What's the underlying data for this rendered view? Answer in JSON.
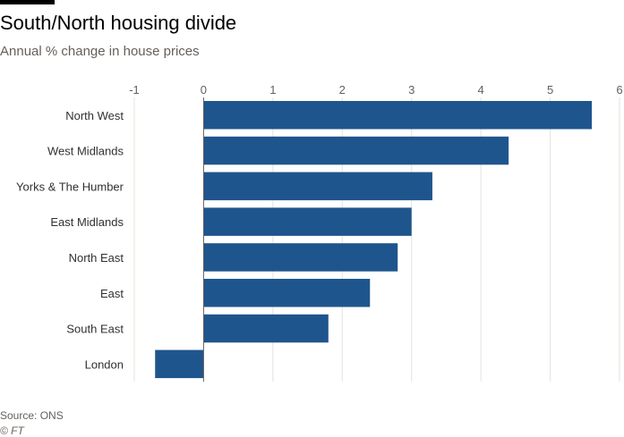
{
  "header": {
    "title": "South/North housing divide",
    "subtitle": "Annual % change in house prices"
  },
  "footer": {
    "source": "Source: ONS",
    "credit": "© FT"
  },
  "colors": {
    "bar": "#1f558d",
    "grid": "#e6e1da",
    "zero_line": "#66605c",
    "accent_bar": "#000000"
  },
  "chart_data": {
    "type": "bar",
    "orientation": "horizontal",
    "title": "South/North housing divide",
    "subtitle": "Annual % change in house prices",
    "categories": [
      "North West",
      "West Midlands",
      "Yorks & The Humber",
      "East Midlands",
      "North East",
      "East",
      "South East",
      "London"
    ],
    "values": [
      5.6,
      4.4,
      3.3,
      3.0,
      2.8,
      2.4,
      1.8,
      -0.7
    ],
    "xlim": [
      -1,
      6
    ],
    "xticks": [
      -1,
      0,
      1,
      2,
      3,
      4,
      5,
      6
    ],
    "tick_labels": [
      "-1",
      "0",
      "1",
      "2",
      "3",
      "4",
      "5",
      "6"
    ],
    "grid": true,
    "axis_position": "top"
  }
}
